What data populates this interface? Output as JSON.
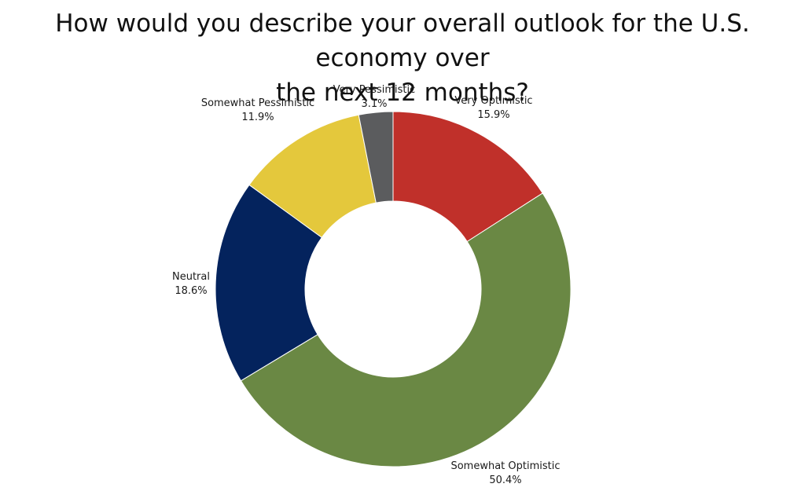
{
  "chart_data": {
    "type": "pie",
    "donut": true,
    "title_lines": [
      "How would you describe your overall outlook for the U.S. economy over",
      "the next 12 months?"
    ],
    "unit": "%",
    "slices": [
      {
        "label": "Very Optimistic",
        "value": 15.9,
        "value_text": "15.9%",
        "color": "#c0302a"
      },
      {
        "label": "Somewhat Optimistic",
        "value": 50.4,
        "value_text": "50.4%",
        "color": "#6a8844"
      },
      {
        "label": "Neutral",
        "value": 18.6,
        "value_text": "18.6%",
        "color": "#04235d"
      },
      {
        "label": "Somewhat Pessimistic",
        "value": 11.9,
        "value_text": "11.9%",
        "color": "#e4c83c"
      },
      {
        "label": "Very Pessimistic",
        "value": 3.1,
        "value_text": "3.1%",
        "color": "#5b5c5e"
      }
    ],
    "legend": "none"
  }
}
